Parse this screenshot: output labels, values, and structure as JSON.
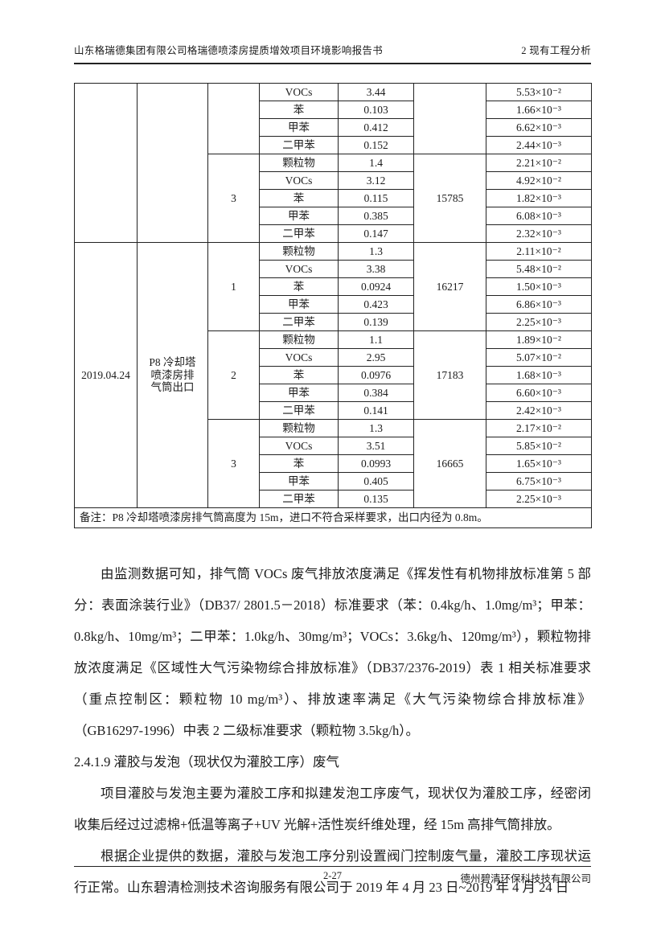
{
  "header": {
    "left": "山东格瑞德集团有限公司格瑞德喷漆房提质增效项目环境影响报告书",
    "right": "2 现有工程分析"
  },
  "table": {
    "sections": [
      {
        "date": "",
        "location": "",
        "groups": [
          {
            "number": "",
            "flow": "",
            "rows": [
              {
                "pollutant": "VOCs",
                "concentration": "3.44",
                "rate": "5.53×10⁻²"
              },
              {
                "pollutant": "苯",
                "concentration": "0.103",
                "rate": "1.66×10⁻³"
              },
              {
                "pollutant": "甲苯",
                "concentration": "0.412",
                "rate": "6.62×10⁻³"
              },
              {
                "pollutant": "二甲苯",
                "concentration": "0.152",
                "rate": "2.44×10⁻³"
              }
            ]
          },
          {
            "number": "3",
            "flow": "15785",
            "rows": [
              {
                "pollutant": "颗粒物",
                "concentration": "1.4",
                "rate": "2.21×10⁻²"
              },
              {
                "pollutant": "VOCs",
                "concentration": "3.12",
                "rate": "4.92×10⁻²"
              },
              {
                "pollutant": "苯",
                "concentration": "0.115",
                "rate": "1.82×10⁻³"
              },
              {
                "pollutant": "甲苯",
                "concentration": "0.385",
                "rate": "6.08×10⁻³"
              },
              {
                "pollutant": "二甲苯",
                "concentration": "0.147",
                "rate": "2.32×10⁻³"
              }
            ]
          }
        ]
      },
      {
        "date": "2019.04.24",
        "location": "P8 冷却塔喷漆房排气筒出口",
        "groups": [
          {
            "number": "1",
            "flow": "16217",
            "rows": [
              {
                "pollutant": "颗粒物",
                "concentration": "1.3",
                "rate": "2.11×10⁻²"
              },
              {
                "pollutant": "VOCs",
                "concentration": "3.38",
                "rate": "5.48×10⁻²"
              },
              {
                "pollutant": "苯",
                "concentration": "0.0924",
                "rate": "1.50×10⁻³"
              },
              {
                "pollutant": "甲苯",
                "concentration": "0.423",
                "rate": "6.86×10⁻³"
              },
              {
                "pollutant": "二甲苯",
                "concentration": "0.139",
                "rate": "2.25×10⁻³"
              }
            ]
          },
          {
            "number": "2",
            "flow": "17183",
            "rows": [
              {
                "pollutant": "颗粒物",
                "concentration": "1.1",
                "rate": "1.89×10⁻²"
              },
              {
                "pollutant": "VOCs",
                "concentration": "2.95",
                "rate": "5.07×10⁻²"
              },
              {
                "pollutant": "苯",
                "concentration": "0.0976",
                "rate": "1.68×10⁻³"
              },
              {
                "pollutant": "甲苯",
                "concentration": "0.384",
                "rate": "6.60×10⁻³"
              },
              {
                "pollutant": "二甲苯",
                "concentration": "0.141",
                "rate": "2.42×10⁻³"
              }
            ]
          },
          {
            "number": "3",
            "flow": "16665",
            "rows": [
              {
                "pollutant": "颗粒物",
                "concentration": "1.3",
                "rate": "2.17×10⁻²"
              },
              {
                "pollutant": "VOCs",
                "concentration": "3.51",
                "rate": "5.85×10⁻²"
              },
              {
                "pollutant": "苯",
                "concentration": "0.0993",
                "rate": "1.65×10⁻³"
              },
              {
                "pollutant": "甲苯",
                "concentration": "0.405",
                "rate": "6.75×10⁻³"
              },
              {
                "pollutant": "二甲苯",
                "concentration": "0.135",
                "rate": "2.25×10⁻³"
              }
            ]
          }
        ]
      }
    ],
    "note": "备注：P8 冷却塔喷漆房排气筒高度为 15m，进口不符合采样要求，出口内径为 0.8m。"
  },
  "body": {
    "paragraph1": "由监测数据可知，排气筒 VOCs 废气排放浓度满足《挥发性有机物排放标准第 5 部分：表面涂装行业》（DB37/ 2801.5－2018）标准要求（苯：0.4kg/h、1.0mg/m³；甲苯：0.8kg/h、10mg/m³；二甲苯：1.0kg/h、30mg/m³；VOCs：3.6kg/h、120mg/m³），颗粒物排放浓度满足《区域性大气污染物综合排放标准》（DB37/2376-2019）表 1 相关标准要求（重点控制区：颗粒物 10 mg/m³）、排放速率满足《大气污染物综合排放标准》（GB16297-1996）中表 2 二级标准要求（颗粒物 3.5kg/h）。",
    "heading": "2.4.1.9 灌胶与发泡（现状仅为灌胶工序）废气",
    "paragraph2": "项目灌胶与发泡主要为灌胶工序和拟建发泡工序废气，现状仅为灌胶工序，经密闭收集后经过过滤棉+低温等离子+UV 光解+活性炭纤维处理，经 15m 高排气筒排放。",
    "paragraph3": "根据企业提供的数据，灌胶与发泡工序分别设置阀门控制废气量，灌胶工序现状运行正常。山东碧清检测技术咨询服务有限公司于 2019 年 4 月 23 日~2019 年 4 月 24 日"
  },
  "footer": {
    "page_number": "2-27",
    "company": "德州碧清环保科技技有限公司"
  }
}
